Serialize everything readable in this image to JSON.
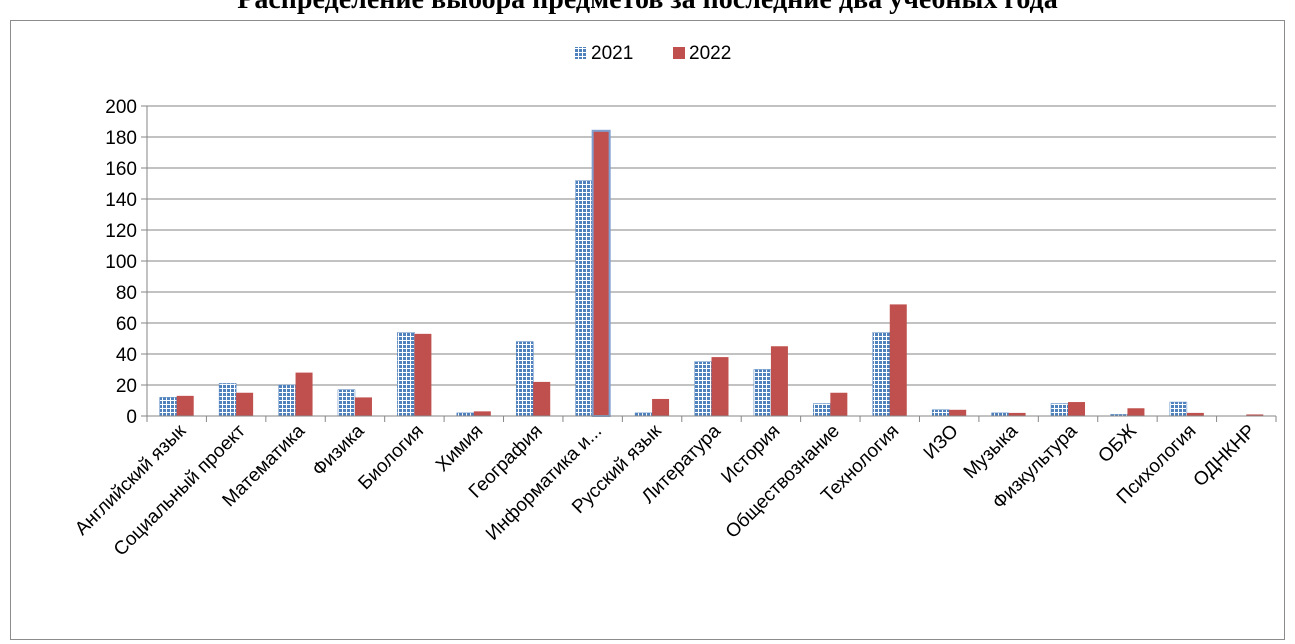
{
  "title": "Распределение выбора предметов за последние два учебных года",
  "colors": {
    "s2021": "#4f81bd",
    "s2022": "#c0504d",
    "grid": "#868686"
  },
  "chart_data": {
    "type": "bar",
    "title": "Распределение выбора предметов за последние два учебных года",
    "categories": [
      "Английский язык",
      "Социальный проект",
      "Математика",
      "Физика",
      "Биология",
      "Химия",
      "География",
      "Информатика и...",
      "Русский язык",
      "Литература",
      "История",
      "Обществознание",
      "Технология",
      "ИЗО",
      "Музыка",
      "Физкультура",
      "ОБЖ",
      "Психология",
      "ОДНКНР"
    ],
    "series": [
      {
        "name": "2021",
        "values": [
          12,
          21,
          20,
          17,
          54,
          2,
          48,
          152,
          2,
          35,
          30,
          8,
          54,
          4,
          2,
          8,
          1,
          9,
          0
        ]
      },
      {
        "name": "2022",
        "values": [
          13,
          15,
          28,
          12,
          53,
          3,
          22,
          184,
          11,
          38,
          45,
          15,
          72,
          4,
          2,
          9,
          5,
          2,
          1
        ]
      }
    ],
    "ylim": [
      0,
      200
    ],
    "yticks": [
      0,
      20,
      40,
      60,
      80,
      100,
      120,
      140,
      160,
      180,
      200
    ],
    "xlabel": "",
    "ylabel": "",
    "legend": "top-center",
    "grid": true
  }
}
